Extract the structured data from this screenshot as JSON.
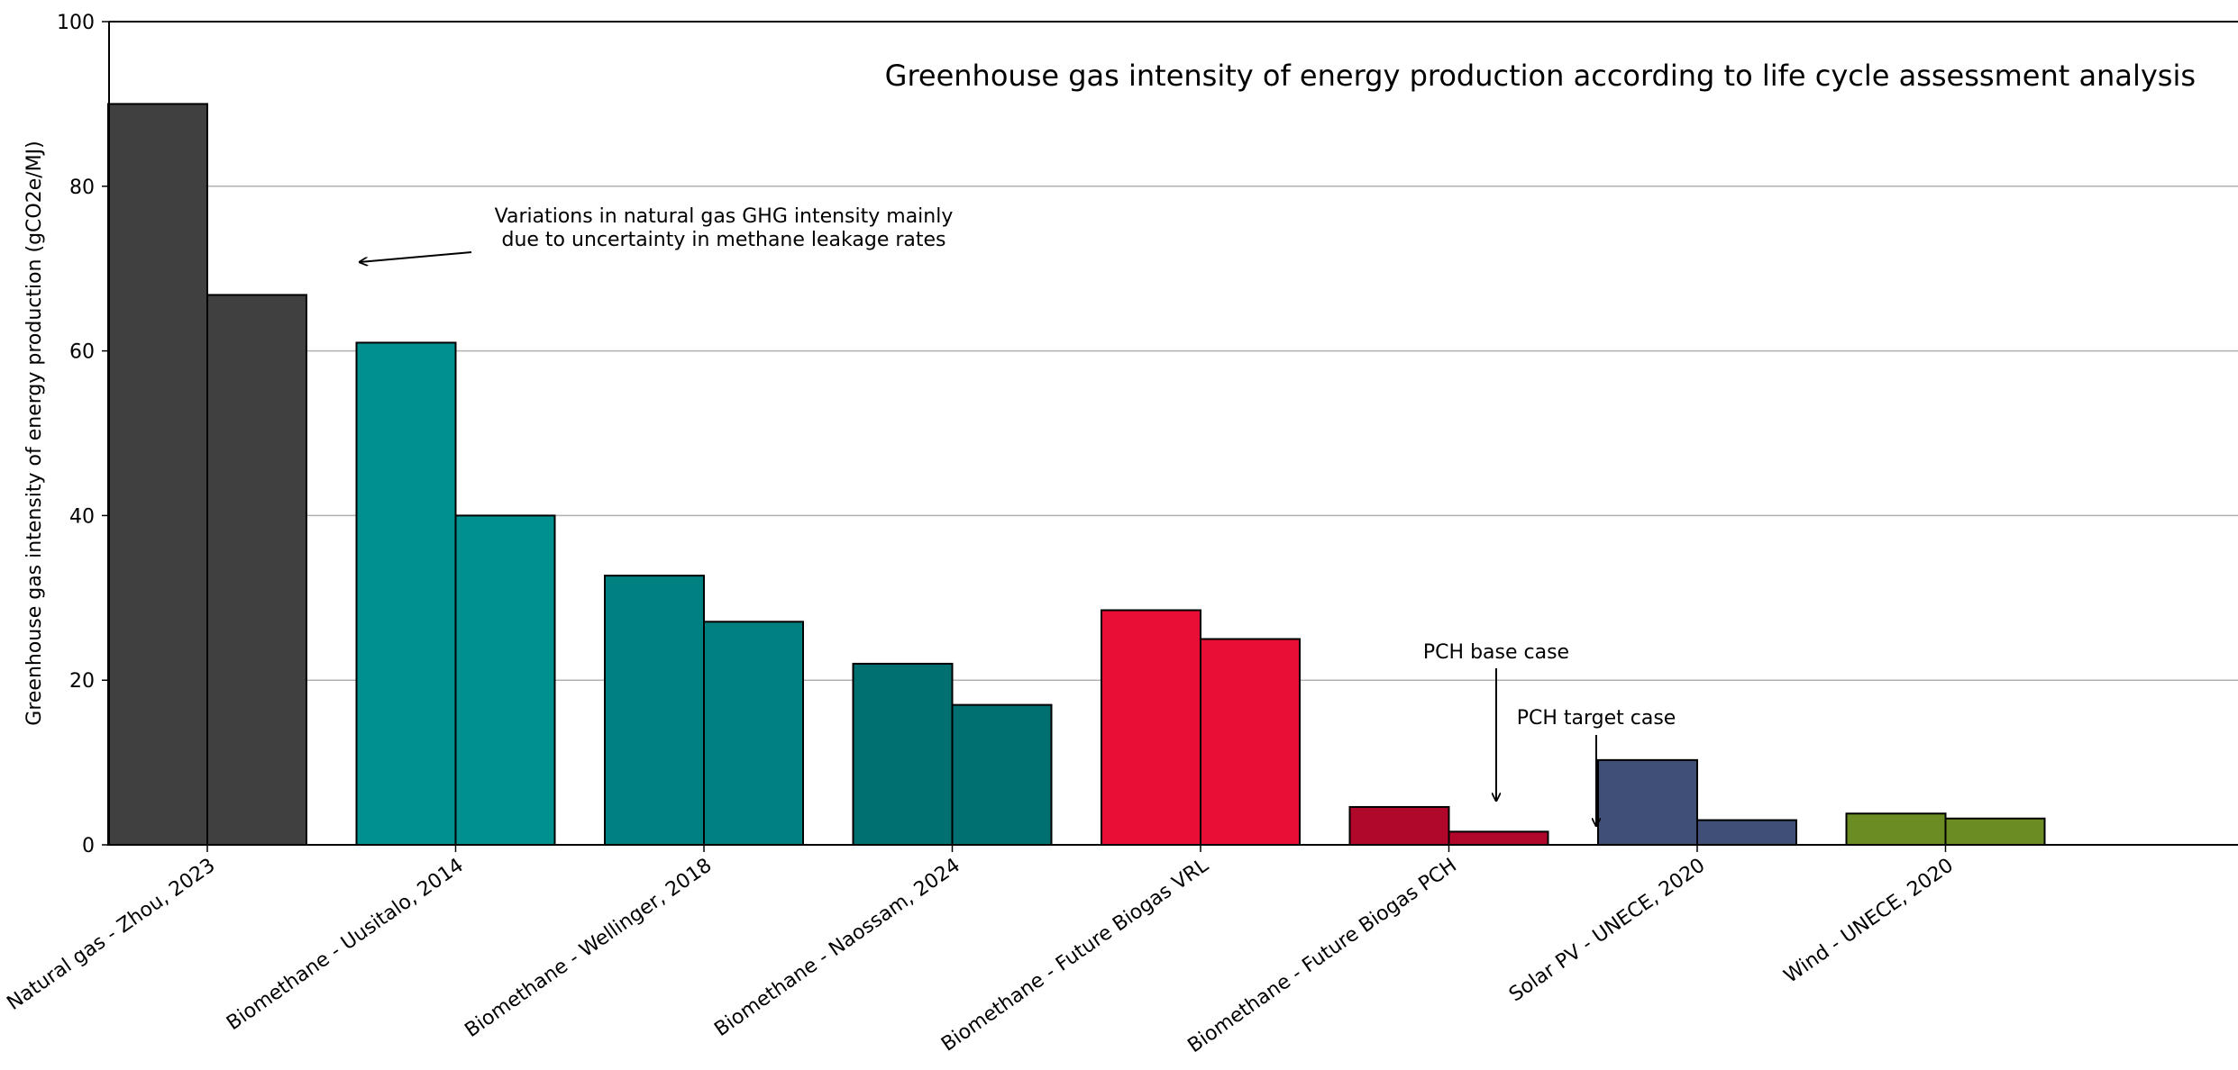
{
  "chart_data": {
    "type": "bar",
    "title": "Greenhouse gas intensity of energy production according to life cycle assessment analysis",
    "xlabel": "",
    "ylabel": "Greenhouse gas intensity of energy production (gCO2e/MJ)",
    "ylim": [
      0,
      100
    ],
    "yticks": [
      "0",
      "20",
      "40",
      "60",
      "80",
      "100"
    ],
    "grid": "horizontal",
    "categories": [
      "Natural gas - Zhou, 2023",
      "Biomethane - Uusitalo, 2014",
      "Biomethane - Wellinger, 2018",
      "Biomethane - Naossam, 2024",
      "Biomethane - Future Biogas VRL",
      "Biomethane - Future Biogas PCH",
      "Solar PV - UNECE, 2020",
      "Wind - UNECE, 2020"
    ],
    "bars": [
      {
        "values": [
          90,
          66.8
        ],
        "color": "#404040"
      },
      {
        "values": [
          61,
          40
        ],
        "color": "#009090"
      },
      {
        "values": [
          32.7,
          27.1
        ],
        "color": "#008080"
      },
      {
        "values": [
          22,
          17
        ],
        "color": "#007070"
      },
      {
        "values": [
          28.5,
          25
        ],
        "color": "#e80e35"
      },
      {
        "values": [
          4.6,
          1.6
        ],
        "color": "#b0082b"
      },
      {
        "values": [
          10.3,
          3
        ],
        "color": "#3f4f75"
      },
      {
        "values": [
          3.8,
          3.2
        ],
        "color": "#6a8c22"
      }
    ],
    "annotations": [
      {
        "text_lines": [
          "Variations in natural gas GHG intensity mainly",
          "due to uncertainty in methane leakage rates"
        ]
      },
      {
        "text": "PCH base case"
      },
      {
        "text": "PCH target case"
      }
    ]
  }
}
